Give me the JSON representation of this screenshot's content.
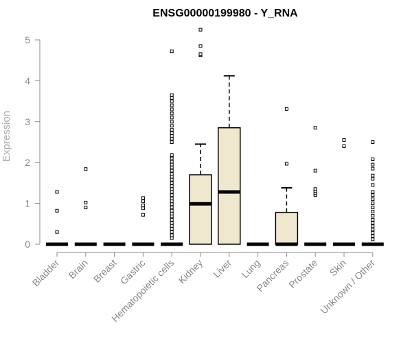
{
  "chart_data": {
    "type": "box",
    "title": "ENSG00000199980 - Y_RNA",
    "xlabel": "",
    "ylabel": "Expression",
    "ylim": [
      0,
      5.3
    ],
    "yticks": [
      0,
      1,
      2,
      3,
      4,
      5
    ],
    "box_fill": "#efe8cf",
    "categories": [
      "Bladder",
      "Brain",
      "Breast",
      "Gastric",
      "Hematopoietic cells",
      "Kidney",
      "Liver",
      "Lung",
      "Pancreas",
      "Prostate",
      "Skin",
      "Unknown / Other"
    ],
    "boxes": [
      {
        "category": "Bladder",
        "q1": 0,
        "median": 0,
        "q3": 0,
        "whisker_low": 0,
        "whisker_high": 0,
        "outliers": [
          0.3,
          0.82,
          1.28
        ]
      },
      {
        "category": "Brain",
        "q1": 0,
        "median": 0,
        "q3": 0,
        "whisker_low": 0,
        "whisker_high": 0,
        "outliers": [
          0.9,
          1.02,
          1.84
        ]
      },
      {
        "category": "Breast",
        "q1": 0,
        "median": 0,
        "q3": 0,
        "whisker_low": 0,
        "whisker_high": 0,
        "outliers": []
      },
      {
        "category": "Gastric",
        "q1": 0,
        "median": 0,
        "q3": 0,
        "whisker_low": 0,
        "whisker_high": 0,
        "outliers": [
          0.72,
          0.88,
          0.95,
          1.05,
          1.13
        ]
      },
      {
        "category": "Hematopoietic cells",
        "q1": 0,
        "median": 0,
        "q3": 0,
        "whisker_low": 0,
        "whisker_high": 0,
        "outliers": [
          0.15,
          0.22,
          0.3,
          0.38,
          0.45,
          0.52,
          0.6,
          0.68,
          0.75,
          0.82,
          0.9,
          0.98,
          1.05,
          1.12,
          1.2,
          1.28,
          1.35,
          1.42,
          1.5,
          1.58,
          1.65,
          1.72,
          1.8,
          1.88,
          1.95,
          2.02,
          2.1,
          2.18,
          2.5,
          2.58,
          2.65,
          2.72,
          2.8,
          2.9,
          3.0,
          3.1,
          3.2,
          3.3,
          3.4,
          3.5,
          3.58,
          3.65,
          4.72
        ]
      },
      {
        "category": "Kidney",
        "q1": 0,
        "median": 0.99,
        "q3": 1.7,
        "whisker_low": 0,
        "whisker_high": 2.45,
        "outliers": [
          4.62,
          4.65,
          4.85,
          5.25
        ]
      },
      {
        "category": "Liver",
        "q1": 0,
        "median": 1.28,
        "q3": 2.85,
        "whisker_low": 0,
        "whisker_high": 4.12,
        "outliers": []
      },
      {
        "category": "Lung",
        "q1": 0,
        "median": 0,
        "q3": 0,
        "whisker_low": 0,
        "whisker_high": 0,
        "outliers": []
      },
      {
        "category": "Pancreas",
        "q1": 0,
        "median": 0,
        "q3": 0.78,
        "whisker_low": 0,
        "whisker_high": 1.38,
        "outliers": [
          1.97,
          3.31
        ]
      },
      {
        "category": "Prostate",
        "q1": 0,
        "median": 0,
        "q3": 0,
        "whisker_low": 0,
        "whisker_high": 0,
        "outliers": [
          1.2,
          1.25,
          1.3,
          1.35,
          1.8,
          2.85
        ]
      },
      {
        "category": "Skin",
        "q1": 0,
        "median": 0,
        "q3": 0,
        "whisker_low": 0,
        "whisker_high": 0,
        "outliers": [
          2.4,
          2.55
        ]
      },
      {
        "category": "Unknown / Other",
        "q1": 0,
        "median": 0,
        "q3": 0,
        "whisker_low": 0,
        "whisker_high": 0,
        "outliers": [
          0.12,
          0.2,
          0.28,
          0.36,
          0.44,
          0.52,
          0.6,
          0.7,
          0.8,
          0.9,
          1.0,
          1.1,
          1.2,
          1.28,
          1.45,
          1.6,
          1.68,
          1.85,
          1.95,
          2.08,
          2.5
        ]
      }
    ]
  }
}
